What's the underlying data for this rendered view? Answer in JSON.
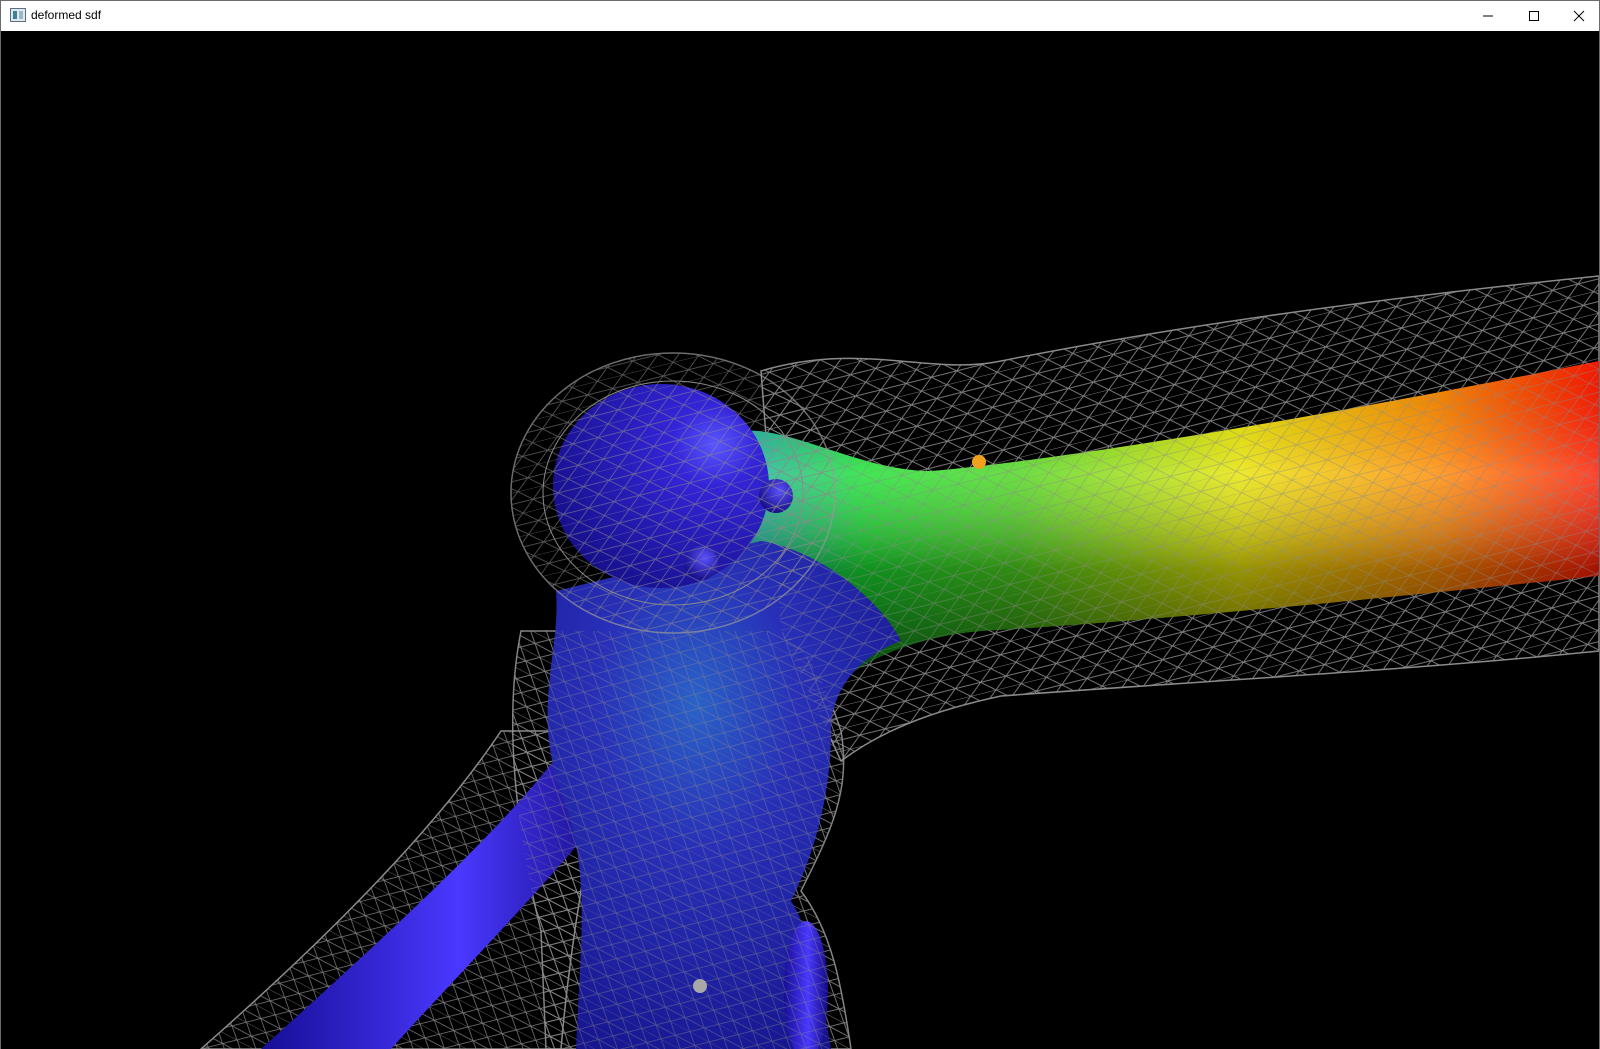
{
  "window": {
    "title": "deformed sdf",
    "icon": "app-window-icon",
    "controls": {
      "minimize": "minimize-icon",
      "maximize": "maximize-icon",
      "close": "close-icon"
    }
  },
  "viewport": {
    "background": "#000000",
    "mesh_surface": {
      "colormap": [
        "#1a10c8",
        "#2a2ad8",
        "#22b4d6",
        "#18e030",
        "#9fd600",
        "#ffe600",
        "#ff7a00",
        "#ff1a00"
      ],
      "wireframe_color": "#8a8a8a"
    },
    "markers": [
      {
        "name": "control-point-orange",
        "color": "#f2a11f"
      },
      {
        "name": "control-point-grey",
        "color": "#a8a8a8"
      }
    ]
  }
}
